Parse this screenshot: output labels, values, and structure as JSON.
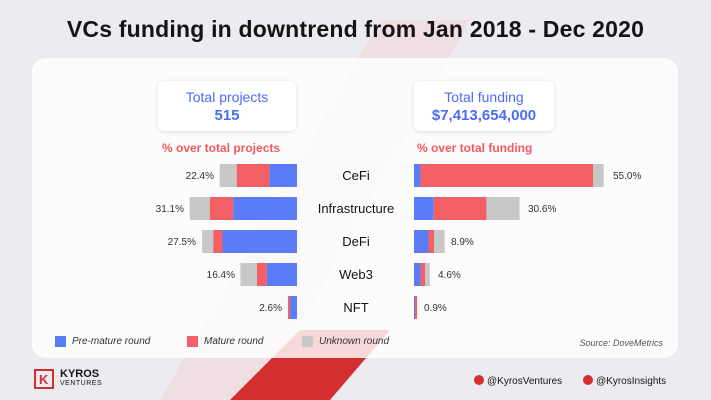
{
  "title": "VCs funding in downtrend from Jan 2018 - Dec 2020",
  "total_projects": {
    "label": "Total projects",
    "value": "515"
  },
  "total_funding": {
    "label": "Total funding",
    "value": "$7,413,654,000"
  },
  "left_heading": "% over total projects",
  "right_heading": "% over total funding",
  "source": "Source: DoveMetrics",
  "brand": {
    "name": "KYROS",
    "sub": "VENTURES"
  },
  "social": [
    "@KyrosVentures",
    "@KyrosInsights"
  ],
  "colors": {
    "pre": "#5b7cf7",
    "mature": "#f25f65",
    "unknown": "#c8c8c8",
    "accent": "#d32f2f"
  },
  "icons": {
    "logo": "kyros-logo-icon",
    "social": "twitter-bird-icon"
  },
  "chart_data": {
    "type": "bar",
    "orientation": "horizontal-stacked-diverging",
    "categories": [
      "CeFi",
      "Infrastructure",
      "DeFi",
      "Web3",
      "NFT"
    ],
    "series_names": [
      "Pre-mature round",
      "Mature round",
      "Unknown round"
    ],
    "left": {
      "title": "% over total projects",
      "totals": [
        "22.4%",
        "31.1%",
        "27.5%",
        "16.4%",
        "2.6%"
      ],
      "total_values": [
        22.4,
        31.1,
        27.5,
        16.4,
        2.6
      ],
      "series": [
        {
          "name": "Pre-mature round",
          "values": [
            8.0,
            18.5,
            21.6,
            8.8,
            2.0
          ]
        },
        {
          "name": "Mature round",
          "values": [
            9.5,
            6.8,
            2.7,
            2.8,
            0.6
          ]
        },
        {
          "name": "Unknown round",
          "values": [
            4.9,
            5.8,
            3.2,
            4.8,
            0.0
          ]
        }
      ]
    },
    "right": {
      "title": "% over total funding",
      "totals": [
        "55.0%",
        "30.6%",
        "8.9%",
        "4.6%",
        "0.9%"
      ],
      "total_values": [
        55.0,
        30.6,
        8.9,
        4.6,
        0.9
      ],
      "series": [
        {
          "name": "Pre-mature round",
          "values": [
            1.9,
            5.7,
            4.2,
            1.9,
            0.3
          ]
        },
        {
          "name": "Mature round",
          "values": [
            50.0,
            15.3,
            1.6,
            1.3,
            0.6
          ]
        },
        {
          "name": "Unknown round",
          "values": [
            3.1,
            9.6,
            3.1,
            1.4,
            0.0
          ]
        }
      ]
    }
  }
}
